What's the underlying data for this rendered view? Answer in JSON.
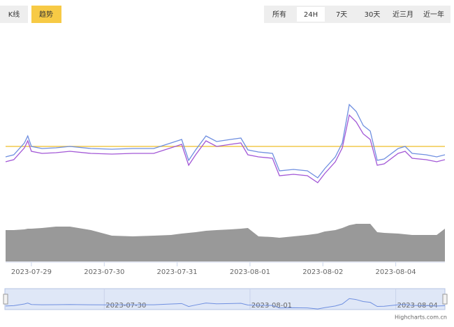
{
  "tabs": [
    {
      "label": "K线",
      "active": false
    },
    {
      "label": "趋势",
      "active": true
    }
  ],
  "range_buttons": [
    {
      "label": "所有",
      "active": false
    },
    {
      "label": "24H",
      "active": true
    },
    {
      "label": "7天",
      "active": false
    },
    {
      "label": "30天",
      "active": false
    },
    {
      "label": "近三月",
      "active": false
    },
    {
      "label": "近一年",
      "active": false
    }
  ],
  "credits": "Highcharts.com.cn",
  "chart_data": {
    "type": "line",
    "x": [
      15.5,
      18.2,
      21.7,
      22.8,
      24,
      27.5,
      32.1,
      36.7,
      43.6,
      50.5,
      57.4,
      64.3,
      70,
      73.5,
      75.8,
      78.1,
      81.5,
      85,
      89.6,
      93,
      95.3,
      98.8,
      103.4,
      105.7,
      110.3,
      114.9,
      118.3,
      120.6,
      124.1,
      126.4,
      128.7,
      131,
      133.3,
      135.6,
      137.9,
      140.2,
      144.8,
      147.1,
      149.4,
      154,
      157.5,
      160.2
    ],
    "series": [
      {
        "color": "#6f8fe0",
        "values": [
          75,
          78,
          95,
          105,
          90,
          87,
          88,
          90,
          87,
          86,
          87,
          87,
          95,
          100,
          70,
          85,
          105,
          97,
          100,
          102,
          85,
          82,
          80,
          55,
          57,
          55,
          45,
          58,
          75,
          95,
          150,
          140,
          120,
          112,
          70,
          72,
          87,
          90,
          80,
          78,
          75,
          78
        ]
      },
      {
        "color": "#a257d6",
        "values": [
          68,
          71,
          88,
          98,
          83,
          80,
          81,
          83,
          80,
          79,
          80,
          80,
          88,
          93,
          63,
          78,
          98,
          90,
          93,
          95,
          78,
          75,
          73,
          48,
          50,
          48,
          38,
          51,
          68,
          88,
          135,
          125,
          108,
          100,
          63,
          65,
          80,
          83,
          73,
          71,
          68,
          71
        ]
      }
    ],
    "reference_line": {
      "value": 90,
      "color": "#f2c94c"
    },
    "volume": {
      "color": "#999999",
      "values": [
        45,
        45,
        46,
        47,
        47,
        48,
        50,
        50,
        45,
        37,
        36,
        37,
        38,
        40,
        41,
        42,
        44,
        45,
        46,
        47,
        48,
        36,
        35,
        34,
        36,
        38,
        40,
        43,
        45,
        48,
        52,
        54,
        54,
        54,
        42,
        41,
        40,
        39,
        38,
        38,
        38,
        47
      ]
    },
    "xlim": [
      15.5,
      160.2
    ],
    "ylim": [
      10,
      260
    ],
    "y2lim": [
      0,
      60
    ],
    "xticks": [
      {
        "value": 24,
        "label": "2023-07-29"
      },
      {
        "value": 48,
        "label": "2023-07-30"
      },
      {
        "value": 72,
        "label": "2023-07-31"
      },
      {
        "value": 96,
        "label": "2023-08-01"
      },
      {
        "value": 120,
        "label": "2023-08-02"
      },
      {
        "value": 144,
        "label": "2023-08-04"
      }
    ],
    "navigator_xticks": [
      {
        "value": 48,
        "label": "2023-07-30"
      },
      {
        "value": 96,
        "label": "2023-08-01"
      },
      {
        "value": 144,
        "label": "2023-08-04"
      }
    ]
  }
}
